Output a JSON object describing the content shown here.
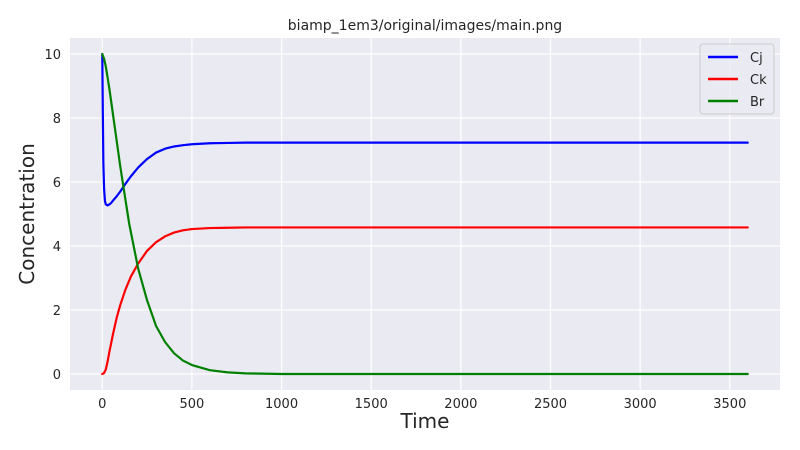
{
  "chart_data": {
    "type": "line",
    "title": "biamp_1em3/original/images/main.png",
    "xlabel": "Time",
    "ylabel": "Concentration",
    "xlim": [
      -180,
      3780
    ],
    "ylim": [
      -0.5,
      10.5
    ],
    "xticks": [
      0,
      500,
      1000,
      1500,
      2000,
      2500,
      3000,
      3500
    ],
    "yticks": [
      0,
      2,
      4,
      6,
      8,
      10
    ],
    "grid": true,
    "legend_position": "top-right",
    "series": [
      {
        "name": "Cj",
        "color": "#0000ff",
        "x": [
          0,
          3,
          6,
          10,
          15,
          20,
          30,
          40,
          50,
          60,
          80,
          100,
          130,
          160,
          200,
          250,
          300,
          350,
          400,
          450,
          500,
          600,
          700,
          800,
          1000,
          1500,
          2000,
          2500,
          3000,
          3600
        ],
        "y": [
          10.0,
          8.2,
          6.6,
          5.8,
          5.4,
          5.3,
          5.27,
          5.3,
          5.35,
          5.42,
          5.55,
          5.7,
          5.95,
          6.18,
          6.45,
          6.72,
          6.92,
          7.04,
          7.11,
          7.15,
          7.18,
          7.21,
          7.22,
          7.23,
          7.23,
          7.23,
          7.23,
          7.23,
          7.23,
          7.23
        ]
      },
      {
        "name": "Ck",
        "color": "#ff0000",
        "x": [
          0,
          10,
          20,
          30,
          40,
          60,
          80,
          100,
          130,
          160,
          200,
          250,
          300,
          350,
          400,
          450,
          500,
          600,
          700,
          800,
          1000,
          1500,
          2000,
          2500,
          3000,
          3600
        ],
        "y": [
          0.0,
          0.03,
          0.15,
          0.4,
          0.7,
          1.25,
          1.75,
          2.15,
          2.65,
          3.05,
          3.45,
          3.85,
          4.12,
          4.3,
          4.42,
          4.49,
          4.53,
          4.56,
          4.57,
          4.58,
          4.58,
          4.58,
          4.58,
          4.58,
          4.58,
          4.58
        ]
      },
      {
        "name": "Br",
        "color": "#008000",
        "x": [
          0,
          10,
          20,
          40,
          60,
          80,
          100,
          150,
          200,
          250,
          300,
          350,
          400,
          450,
          500,
          600,
          700,
          800,
          1000,
          1500,
          2000,
          2500,
          3000,
          3600
        ],
        "y": [
          10.0,
          9.85,
          9.6,
          8.9,
          8.1,
          7.3,
          6.5,
          4.7,
          3.3,
          2.3,
          1.5,
          1.0,
          0.65,
          0.42,
          0.28,
          0.12,
          0.05,
          0.02,
          0.0,
          0.0,
          0.0,
          0.0,
          0.0,
          0.0
        ]
      }
    ]
  }
}
